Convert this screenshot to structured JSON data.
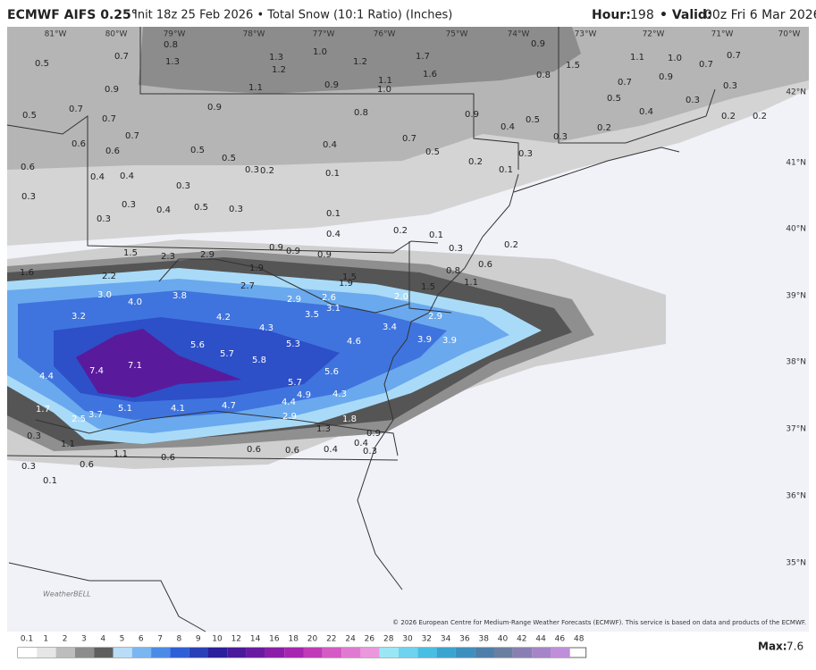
{
  "header": {
    "model": "ECMWF AIFS 0.25°",
    "description": "Init 18z 25 Feb 2026 • Total Snow (10:1 Ratio) (Inches)",
    "hour_label": "Hour:",
    "hour": "198",
    "valid_label": "• Valid:",
    "valid": "00z Fri 6 Mar 2026"
  },
  "map": {
    "lon_labels": [
      "81°W",
      "80°W",
      "79°W",
      "78°W",
      "77°W",
      "76°W",
      "75°W",
      "74°W",
      "73°W",
      "72°W",
      "71°W",
      "70°W"
    ],
    "lat_labels": [
      "42°N",
      "41°N",
      "40°N",
      "39°N",
      "38°N",
      "37°N",
      "36°N",
      "35°N"
    ],
    "values": [
      "0.5",
      "0.7",
      "0.8",
      "1.3",
      "1.3",
      "1.2",
      "1.0",
      "1.2",
      "1.7",
      "1.6",
      "0.9",
      "1.5",
      "1.1",
      "1.0",
      "0.7",
      "0.7",
      "1.1",
      "0.9",
      "1.1",
      "1.0",
      "0.8",
      "0.7",
      "0.9",
      "0.3",
      "0.9",
      "0.5",
      "0.7",
      "0.7",
      "0.9",
      "0.8",
      "0.9",
      "0.5",
      "0.5",
      "0.4",
      "0.3",
      "0.2",
      "0.2",
      "0.6",
      "0.7",
      "0.6",
      "0.5",
      "0.5",
      "0.4",
      "0.7",
      "0.5",
      "0.4",
      "0.2",
      "0.3",
      "0.3",
      "0.2",
      "0.1",
      "0.6",
      "0.4",
      "0.4",
      "0.3",
      "0.2",
      "0.1",
      "0.3",
      "0.3",
      "0.3",
      "0.4",
      "0.5",
      "0.3",
      "0.1",
      "0.3",
      "0.4",
      "0.2",
      "0.1",
      "0.3",
      "0.2",
      "1.6",
      "2.2",
      "1.5",
      "2.3",
      "2.9",
      "0.9",
      "0.9",
      "0.9",
      "1.9",
      "1.5",
      "1.9",
      "0.8",
      "0.6",
      "1.1",
      "1.5",
      "2.0",
      "3.0",
      "4.0",
      "3.8",
      "2.7",
      "2.9",
      "2.6",
      "3.1",
      "3.2",
      "4.2",
      "3.5",
      "2.9",
      "4.3",
      "3.4",
      "4.6",
      "5.3",
      "3.9",
      "3.9",
      "5.6",
      "5.7",
      "5.8",
      "7.4",
      "7.1",
      "4.4",
      "5.6",
      "5.7",
      "4.9",
      "4.3",
      "4.4",
      "1.7",
      "2.5",
      "3.7",
      "5.1",
      "4.1",
      "4.7",
      "2.9",
      "1.8",
      "1.3",
      "0.3",
      "1.1",
      "1.1",
      "0.6",
      "0.6",
      "0.6",
      "0.4",
      "0.4",
      "0.3",
      "0.9",
      "0.3",
      "0.6",
      "0.1"
    ]
  },
  "footer": {
    "logo": "WeatherBELL",
    "copyright": "© 2026 European Centre for Medium-Range Weather Forecasts (ECMWF). This service is based on data and products of the ECMWF.",
    "colorbar_labels": [
      "0.1",
      "1",
      "2",
      "3",
      "4",
      "5",
      "6",
      "7",
      "8",
      "9",
      "10",
      "12",
      "14",
      "16",
      "18",
      "20",
      "22",
      "24",
      "26",
      "28",
      "30",
      "32",
      "34",
      "36",
      "38",
      "40",
      "42",
      "44",
      "46",
      "48"
    ],
    "max_label": "Max:",
    "max": "7.6"
  }
}
